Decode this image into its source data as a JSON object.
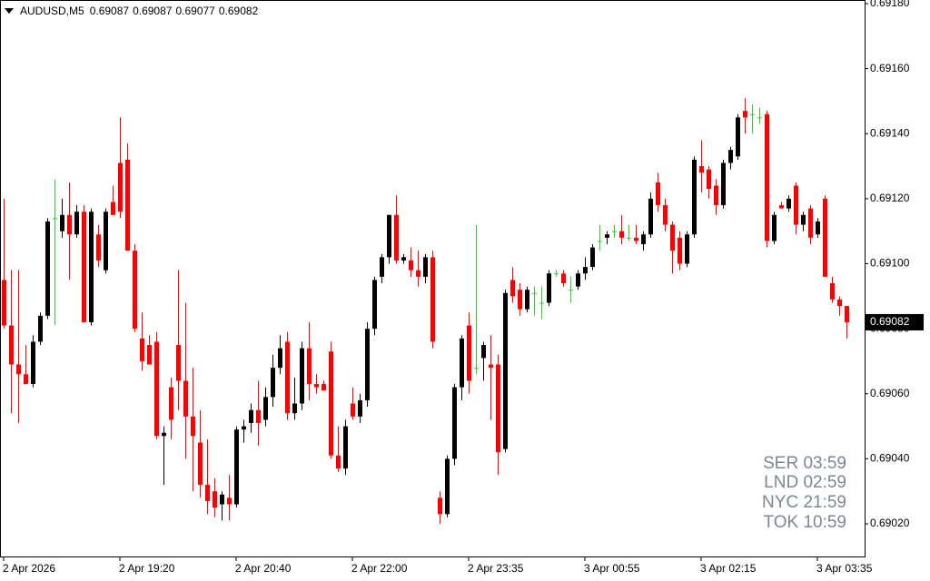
{
  "chart_data": {
    "type": "candlestick",
    "title": "AUDUSD,M5",
    "annotations": [
      "SER 03:59",
      "LND 02:59",
      "NYC 21:59",
      "TOK 10:59"
    ],
    "up_color": "#000000",
    "down_color": "#ff0000",
    "doji_color": "#32cd32",
    "grid": false,
    "ylim": [
      0.69018,
      0.69181
    ],
    "yticks": [
      {
        "value": 0.6902,
        "label": "0.69020"
      },
      {
        "value": 0.6904,
        "label": "0.69040"
      },
      {
        "value": 0.6906,
        "label": "0.69060"
      },
      {
        "value": 0.6908,
        "label": "0.69080"
      },
      {
        "value": 0.691,
        "label": "0.69100"
      },
      {
        "value": 0.6912,
        "label": "0.69120"
      },
      {
        "value": 0.6914,
        "label": "0.69140"
      },
      {
        "value": 0.6916,
        "label": "0.69160"
      },
      {
        "value": 0.6918,
        "label": "0.69180"
      }
    ],
    "categories": [
      "2 Apr 2026",
      null,
      null,
      null,
      null,
      null,
      null,
      null,
      null,
      null,
      null,
      null,
      null,
      null,
      null,
      null,
      "2 Apr 19:20",
      null,
      null,
      null,
      null,
      null,
      null,
      null,
      null,
      null,
      null,
      null,
      null,
      null,
      null,
      null,
      "2 Apr 20:40",
      null,
      null,
      null,
      null,
      null,
      null,
      null,
      null,
      null,
      null,
      null,
      null,
      null,
      null,
      null,
      "2 Apr 22:00",
      null,
      null,
      null,
      null,
      null,
      null,
      null,
      null,
      null,
      null,
      null,
      null,
      null,
      null,
      null,
      "2 Apr 23:35",
      null,
      null,
      null,
      null,
      null,
      null,
      null,
      null,
      null,
      null,
      null,
      null,
      null,
      null,
      null,
      "3 Apr 00:55",
      null,
      null,
      null,
      null,
      null,
      null,
      null,
      null,
      null,
      null,
      null,
      null,
      null,
      null,
      null,
      "3 Apr 02:15",
      null,
      null,
      null,
      null,
      null,
      null,
      null,
      null,
      null,
      null,
      null,
      null,
      null,
      null,
      null,
      "3 Apr 03:35",
      null,
      null,
      null,
      null
    ],
    "open": [
      0.69095,
      0.69081,
      0.69069,
      0.69066,
      0.69063,
      0.69076,
      0.69084,
      0.69114,
      0.6911,
      0.69115,
      0.69109,
      0.69116,
      0.69082,
      0.69109,
      0.69098,
      0.69119,
      0.69131,
      0.69132,
      0.69104,
      0.69077,
      0.69075,
      0.69076,
      0.69047,
      0.69062,
      0.69075,
      0.69064,
      0.69053,
      0.69045,
      0.69032,
      0.6903,
      0.69026,
      0.69028,
      0.69026,
      0.69049,
      0.69051,
      0.69055,
      0.69052,
      0.69059,
      0.69068,
      0.69076,
      0.69054,
      0.69057,
      0.69074,
      0.69063,
      0.69063,
      0.69073,
      0.69041,
      0.69037,
      0.69057,
      0.69053,
      0.69058,
      0.6908,
      0.69096,
      0.69102,
      0.69115,
      0.69101,
      0.69101,
      0.69098,
      0.69096,
      0.69102,
      0.69028,
      0.69023,
      0.6904,
      0.69062,
      0.69081,
      0.69068,
      0.69071,
      0.69069,
      0.69069,
      0.69043,
      0.69095,
      0.69092,
      0.69086,
      0.69091,
      0.69088,
      0.69088,
      0.69097,
      0.69097,
      0.69092,
      0.69093,
      0.69097,
      0.69099,
      0.69107,
      0.69108,
      0.6911,
      0.6911,
      0.69108,
      0.69108,
      0.69106,
      0.69109,
      0.69125,
      0.69118,
      0.69112,
      0.69108,
      0.691,
      0.69109,
      0.6913,
      0.69129,
      0.69124,
      0.69118,
      0.69131,
      0.69133,
      0.69147,
      0.69146,
      0.69145,
      0.69146,
      0.69107,
      0.69118,
      0.69117,
      0.69124,
      0.69112,
      0.69117,
      0.69109,
      0.6912,
      0.69094,
      0.69089,
      0.69087
    ],
    "high": [
      0.6912,
      0.69098,
      0.69098,
      0.69075,
      0.69078,
      0.69085,
      0.69114,
      0.69126,
      0.6912,
      0.69125,
      0.69118,
      0.69118,
      0.69117,
      0.69112,
      0.69117,
      0.69124,
      0.69145,
      0.69137,
      0.69106,
      0.69085,
      0.69078,
      0.69079,
      0.6905,
      0.69065,
      0.69098,
      0.69088,
      0.69068,
      0.69055,
      0.69046,
      0.69034,
      0.6903,
      0.69035,
      0.6905,
      0.69052,
      0.69057,
      0.69064,
      0.69062,
      0.69072,
      0.69078,
      0.69079,
      0.69065,
      0.69076,
      0.69082,
      0.69066,
      0.69064,
      0.69076,
      0.6905,
      0.69052,
      0.69062,
      0.6906,
      0.69082,
      0.69096,
      0.69103,
      0.69115,
      0.69121,
      0.69103,
      0.69105,
      0.69104,
      0.69103,
      0.69104,
      0.6903,
      0.69041,
      0.69063,
      0.69078,
      0.69085,
      0.69112,
      0.69076,
      0.69078,
      0.69072,
      0.69092,
      0.69099,
      0.69094,
      0.69093,
      0.69093,
      0.69093,
      0.69098,
      0.69098,
      0.69098,
      0.69096,
      0.69098,
      0.69102,
      0.69106,
      0.69112,
      0.6911,
      0.69112,
      0.69115,
      0.69112,
      0.69112,
      0.6911,
      0.69122,
      0.69128,
      0.6912,
      0.69113,
      0.6911,
      0.6911,
      0.69133,
      0.69138,
      0.6913,
      0.69126,
      0.69132,
      0.69136,
      0.69146,
      0.69151,
      0.69149,
      0.69148,
      0.69147,
      0.69116,
      0.69119,
      0.69121,
      0.69125,
      0.69116,
      0.69118,
      0.69114,
      0.69121,
      0.69096,
      0.6909,
      0.69087
    ],
    "low": [
      0.6908,
      0.69054,
      0.69051,
      0.69063,
      0.69062,
      0.69075,
      0.69083,
      0.69081,
      0.69108,
      0.69095,
      0.69108,
      0.69082,
      0.69081,
      0.69099,
      0.69097,
      0.69115,
      0.69114,
      0.69104,
      0.69079,
      0.69067,
      0.69069,
      0.69046,
      0.69032,
      0.69046,
      0.69055,
      0.6904,
      0.6903,
      0.69028,
      0.69023,
      0.69022,
      0.69021,
      0.69021,
      0.69025,
      0.69045,
      0.69048,
      0.69044,
      0.6905,
      0.69056,
      0.69066,
      0.69052,
      0.69052,
      0.69055,
      0.69058,
      0.6906,
      0.69061,
      0.6904,
      0.69036,
      0.69035,
      0.69052,
      0.69051,
      0.69056,
      0.69078,
      0.69094,
      0.691,
      0.691,
      0.691,
      0.69096,
      0.69093,
      0.69094,
      0.69074,
      0.6902,
      0.69022,
      0.69038,
      0.69058,
      0.6906,
      0.69066,
      0.69064,
      0.69052,
      0.69035,
      0.69042,
      0.69088,
      0.69084,
      0.69085,
      0.69084,
      0.69083,
      0.69087,
      0.69096,
      0.69093,
      0.69088,
      0.69092,
      0.69095,
      0.69098,
      0.69104,
      0.69106,
      0.69108,
      0.69106,
      0.69107,
      0.69106,
      0.69104,
      0.69108,
      0.69116,
      0.6911,
      0.69097,
      0.69098,
      0.69099,
      0.69108,
      0.69122,
      0.6912,
      0.69115,
      0.69117,
      0.69129,
      0.69132,
      0.6914,
      0.6914,
      0.69143,
      0.69105,
      0.69106,
      0.69117,
      0.69116,
      0.69109,
      0.6911,
      0.69106,
      0.69108,
      0.69096,
      0.69088,
      0.69084,
      0.69077
    ],
    "close": [
      0.69081,
      0.69069,
      0.69066,
      0.69063,
      0.69076,
      0.69084,
      0.69113,
      0.69114,
      0.69115,
      0.69109,
      0.69116,
      0.69082,
      0.69116,
      0.69101,
      0.69116,
      0.69115,
      0.69116,
      0.69104,
      0.6908,
      0.6907,
      0.69069,
      0.69047,
      0.69048,
      0.69052,
      0.69064,
      0.69053,
      0.69047,
      0.69032,
      0.69027,
      0.69025,
      0.69029,
      0.69026,
      0.69049,
      0.6905,
      0.69055,
      0.69051,
      0.69059,
      0.69068,
      0.69074,
      0.69054,
      0.69057,
      0.69074,
      0.69063,
      0.69062,
      0.69061,
      0.69041,
      0.69037,
      0.6905,
      0.69053,
      0.69058,
      0.6908,
      0.69095,
      0.69102,
      0.69115,
      0.69101,
      0.69102,
      0.69098,
      0.69096,
      0.69102,
      0.69076,
      0.69023,
      0.6904,
      0.69062,
      0.69077,
      0.69064,
      0.69068,
      0.69075,
      0.69068,
      0.69042,
      0.69091,
      0.6909,
      0.69086,
      0.69092,
      0.69091,
      0.69088,
      0.69097,
      0.69097,
      0.69094,
      0.69092,
      0.69097,
      0.69099,
      0.69105,
      0.69107,
      0.69109,
      0.6911,
      0.69108,
      0.69108,
      0.69107,
      0.69109,
      0.6912,
      0.69118,
      0.69112,
      0.69104,
      0.691,
      0.69109,
      0.69132,
      0.69128,
      0.69123,
      0.69118,
      0.69131,
      0.69135,
      0.69145,
      0.69145,
      0.69146,
      0.69145,
      0.69107,
      0.69115,
      0.69117,
      0.6912,
      0.69112,
      0.69115,
      0.69108,
      0.69113,
      0.69096,
      0.69089,
      0.69087,
      0.69082
    ]
  }
}
